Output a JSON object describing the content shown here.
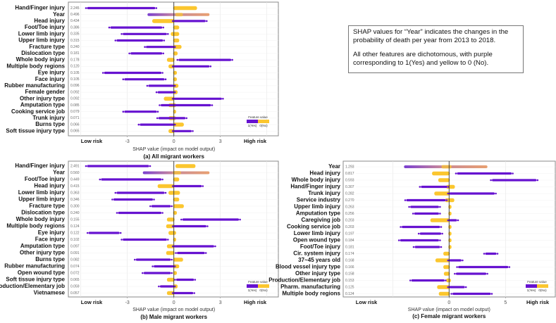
{
  "note": {
    "line1": "SHAP values for “Year” indicates the changes in the probability of death per year from 2013 to 2018.",
    "line2": "All other features are dichotomous, with purple corresponding to 1(Yes) and yellow to 0 (No)."
  },
  "colors": {
    "yes": "#6612d0",
    "no": "#fbc62e",
    "year": "#e39a6c",
    "grid": "#e6e6e6",
    "zero": "#333333"
  },
  "chart_data": [
    {
      "type": "scatter",
      "title": "(a) All migrant workers",
      "xlabel": "SHAP value (impact on model output)",
      "low_label": "Low risk",
      "high_label": "High risk",
      "x_ticks": [
        "-3",
        "0",
        "3"
      ],
      "grid": [
        -6,
        -3,
        3,
        6
      ],
      "xlim": [
        -6.8,
        6.75
      ],
      "legend": {
        "title": "Feature value",
        "yes": "1(Yes)",
        "no": "0(No)",
        "placement": "bottom-right"
      },
      "features": [
        {
          "name": "Hand/Finger injury",
          "mean_abs_shap": "2.245",
          "purple": [
            -5.6,
            -1.2
          ],
          "yellow": [
            0,
            1.45
          ]
        },
        {
          "name": "Year",
          "mean_abs_shap": "0.496",
          "mixed": [
            -1.7,
            2.3
          ]
        },
        {
          "name": "Head injury",
          "mean_abs_shap": "0.434",
          "purple": [
            0,
            2.05
          ],
          "yellow": [
            -1.35,
            0
          ]
        },
        {
          "name": "Foot/Toe injury",
          "mean_abs_shap": "0.386",
          "purple": [
            -4.1,
            -0.75
          ],
          "yellow": [
            0,
            0.3
          ]
        },
        {
          "name": "Lower limb injury",
          "mean_abs_shap": "0.335",
          "purple": [
            -3.3,
            -0.45
          ],
          "yellow": [
            -0.15,
            0.3
          ]
        },
        {
          "name": "Upper limb injury",
          "mean_abs_shap": "0.315",
          "purple": [
            -3.7,
            -0.7
          ],
          "yellow": [
            0,
            0.3
          ]
        },
        {
          "name": "Fracture type",
          "mean_abs_shap": "0.240",
          "purple": [
            -1.8,
            0
          ],
          "yellow": [
            0,
            0.45
          ]
        },
        {
          "name": "Dislocation type",
          "mean_abs_shap": "0.181",
          "purple": [
            -2.8,
            -0.75
          ],
          "yellow": [
            0,
            0.2
          ]
        },
        {
          "name": "Whole body injury",
          "mean_abs_shap": "0.178",
          "purple": [
            0.3,
            3.7
          ],
          "yellow": [
            -0.4,
            0
          ]
        },
        {
          "name": "Multiple body regions",
          "mean_abs_shap": "0.120",
          "purple": [
            0,
            2.3
          ],
          "yellow": [
            -0.3,
            0
          ]
        },
        {
          "name": "Eye injury",
          "mean_abs_shap": "0.105",
          "purple": [
            -4.5,
            -0.8
          ],
          "yellow": [
            0,
            0.15
          ]
        },
        {
          "name": "Face injury",
          "mean_abs_shap": "0.105",
          "purple": [
            -3.2,
            -0.6
          ],
          "yellow": [
            0,
            0.15
          ]
        },
        {
          "name": "Rubber manufacturing",
          "mean_abs_shap": "0.096",
          "purple": [
            -1.65,
            0
          ],
          "yellow": [
            0,
            0.25
          ]
        },
        {
          "name": "Female gender",
          "mean_abs_shap": "0.092",
          "purple": [
            -1.05,
            0
          ],
          "yellow": [
            0,
            0.2
          ]
        },
        {
          "name": "Other injury type",
          "mean_abs_shap": "0.092",
          "purple": [
            0,
            3.1
          ],
          "yellow": [
            -0.6,
            0
          ]
        },
        {
          "name": "Amputation type",
          "mean_abs_shap": "0.085",
          "purple": [
            -0.85,
            2.4
          ],
          "yellow": [
            -0.3,
            0.1
          ]
        },
        {
          "name": "Cooking service job",
          "mean_abs_shap": "0.079",
          "purple": [
            -3.2,
            -1.1
          ],
          "yellow": [
            0,
            0.1
          ]
        },
        {
          "name": "Trunk injury",
          "mean_abs_shap": "0.071",
          "purple": [
            -1.0,
            0.75
          ],
          "yellow": [
            -0.3,
            0.1
          ]
        },
        {
          "name": "Burns type",
          "mean_abs_shap": "0.066",
          "purple": [
            -2.2,
            0
          ],
          "yellow": [
            0,
            0.6
          ]
        },
        {
          "name": "Soft tissue injury type",
          "mean_abs_shap": "0.065",
          "purple": [
            0,
            1.15
          ],
          "yellow": [
            -0.3,
            0
          ]
        }
      ]
    },
    {
      "type": "scatter",
      "title": "(b) Male migrant workers",
      "xlabel": "SHAP value (impact on model output)",
      "low_label": "Low risk",
      "high_label": "High risk",
      "x_ticks": [
        "-3",
        "0",
        "3"
      ],
      "grid": [
        -6,
        -3,
        3,
        6
      ],
      "xlim": [
        -6.8,
        6.75
      ],
      "legend": {
        "title": "Feature value",
        "yes": "1(Yes)",
        "no": "0(No)",
        "placement": "bottom-right"
      },
      "features": [
        {
          "name": "Hand/Finger injury",
          "mean_abs_shap": "2.491",
          "purple": [
            -5.6,
            -1.6
          ],
          "yellow": [
            0.15,
            1.35
          ]
        },
        {
          "name": "Year",
          "mean_abs_shap": "0.560",
          "mixed": [
            -2.0,
            2.3
          ]
        },
        {
          "name": "Foot/Toe injury",
          "mean_abs_shap": "0.449",
          "purple": [
            -4.7,
            -0.8
          ],
          "yellow": [
            0,
            0.3
          ]
        },
        {
          "name": "Head injury",
          "mean_abs_shap": "0.415",
          "purple": [
            0,
            1.8
          ],
          "yellow": [
            -1.0,
            0
          ]
        },
        {
          "name": "Lower limb injury",
          "mean_abs_shap": "0.363",
          "purple": [
            -3.7,
            -0.6
          ],
          "yellow": [
            -0.3,
            0.35
          ]
        },
        {
          "name": "Upper limb injury",
          "mean_abs_shap": "0.346",
          "purple": [
            -3.9,
            -1.35
          ],
          "yellow": [
            0,
            0.3
          ]
        },
        {
          "name": "Fracture type",
          "mean_abs_shap": "0.300",
          "purple": [
            -1.45,
            -0.2
          ],
          "yellow": [
            0,
            0.6
          ]
        },
        {
          "name": "Dislocation type",
          "mean_abs_shap": "0.240",
          "purple": [
            -3.6,
            -0.8
          ],
          "yellow": [
            0,
            0.15
          ]
        },
        {
          "name": "Whole body injury",
          "mean_abs_shap": "0.155",
          "purple": [
            0.55,
            4.2
          ],
          "yellow": [
            -0.4,
            0
          ]
        },
        {
          "name": "Multiple body regions",
          "mean_abs_shap": "0.124",
          "purple": [
            0,
            2.1
          ],
          "yellow": [
            -0.45,
            0
          ]
        },
        {
          "name": "Eye injury",
          "mean_abs_shap": "0.122",
          "purple": [
            -5.5,
            -3.5
          ],
          "yellow": [
            -0.3,
            0.1
          ]
        },
        {
          "name": "Face injury",
          "mean_abs_shap": "0.102",
          "purple": [
            -3.3,
            -0.45
          ],
          "yellow": [
            0,
            0.1
          ]
        },
        {
          "name": "Amputation type",
          "mean_abs_shap": "0.097",
          "purple": [
            0,
            2.6
          ],
          "yellow": [
            -0.4,
            0
          ]
        },
        {
          "name": "Other injury type",
          "mean_abs_shap": "0.091",
          "purple": [
            0.2,
            2.0
          ],
          "yellow": [
            -0.45,
            0
          ]
        },
        {
          "name": "Burns type",
          "mean_abs_shap": "0.082",
          "purple": [
            -2.45,
            -0.2
          ],
          "yellow": [
            0,
            0.55
          ]
        },
        {
          "name": "Rubber manufacturing",
          "mean_abs_shap": "0.074",
          "purple": [
            -1.3,
            0
          ],
          "yellow": [
            0,
            0.3
          ]
        },
        {
          "name": "Open wound type",
          "mean_abs_shap": "0.072",
          "purple": [
            -1.95,
            -0.2
          ],
          "yellow": [
            0,
            0.15
          ]
        },
        {
          "name": "Soft tissue injury type",
          "mean_abs_shap": "0.065",
          "purple": [
            0.15,
            1.3
          ],
          "yellow": [
            -0.4,
            0
          ]
        },
        {
          "name": "Production/Elementary job",
          "mean_abs_shap": "0.059",
          "purple": [
            -0.9,
            0
          ],
          "yellow": [
            0,
            0.2
          ]
        },
        {
          "name": "Vietnamese",
          "mean_abs_shap": "0.057",
          "purple": [
            0,
            1.25
          ],
          "yellow": [
            -0.4,
            0
          ]
        }
      ]
    },
    {
      "type": "scatter",
      "title": "(c) Female migrant workers",
      "xlabel": "SHAP value (impact on model output)",
      "low_label": "Low risk",
      "high_label": "High risk",
      "x_ticks": [
        "0",
        "5"
      ],
      "grid": [
        -5,
        5
      ],
      "xlim": [
        -9.4,
        9.4
      ],
      "legend": {
        "title": "Feature value",
        "yes": "1(Yes)",
        "no": "0(No)",
        "placement": "bottom-right"
      },
      "features": [
        {
          "name": "Year",
          "mean_abs_shap": "1.293",
          "mixed": [
            -4.0,
            3.4
          ]
        },
        {
          "name": "Head injury",
          "mean_abs_shap": "0.817",
          "purple": [
            0.7,
            5.55
          ],
          "yellow": [
            -1.45,
            0
          ]
        },
        {
          "name": "Whole body injury",
          "mean_abs_shap": "0.593",
          "purple": [
            3.8,
            7.75
          ],
          "yellow": [
            -0.9,
            0
          ]
        },
        {
          "name": "Hand/Finger injury",
          "mean_abs_shap": "0.307",
          "purple": [
            -2.5,
            -0.15
          ],
          "yellow": [
            -0.2,
            0.45
          ]
        },
        {
          "name": "Trunk injury",
          "mean_abs_shap": "0.282",
          "purple": [
            0,
            4.05
          ],
          "yellow": [
            -1.25,
            0
          ]
        },
        {
          "name": "Service industry",
          "mean_abs_shap": "0.270",
          "purple": [
            -3.8,
            -0.3
          ],
          "yellow": [
            -0.3,
            0.4
          ]
        },
        {
          "name": "Upper limb injury",
          "mean_abs_shap": "0.263",
          "purple": [
            -3.45,
            -0.9
          ],
          "yellow": [
            0,
            0.15
          ]
        },
        {
          "name": "Amputation type",
          "mean_abs_shap": "0.256",
          "purple": [
            -3.1,
            -0.9
          ],
          "yellow": [
            0,
            0.15
          ]
        },
        {
          "name": "Caregiving job",
          "mean_abs_shap": "0.203",
          "purple": [
            0,
            0.7
          ],
          "yellow": [
            -1.6,
            0
          ]
        },
        {
          "name": "Cooking service job",
          "mean_abs_shap": "0.203",
          "purple": [
            -4.2,
            -0.8
          ],
          "yellow": [
            0,
            0.15
          ]
        },
        {
          "name": "Lower limb injury",
          "mean_abs_shap": "0.197",
          "purple": [
            -2.6,
            -0.7
          ],
          "yellow": [
            0,
            0.15
          ]
        },
        {
          "name": "Open wound type",
          "mean_abs_shap": "0.184",
          "purple": [
            -4.35,
            -0.9
          ],
          "yellow": [
            0,
            0.15
          ]
        },
        {
          "name": "Foot/Toe injury",
          "mean_abs_shap": "0.181",
          "purple": [
            -3.05,
            -0.8
          ],
          "yellow": [
            0,
            0.15
          ]
        },
        {
          "name": "Cir. system injury",
          "mean_abs_shap": "0.174",
          "purple": [
            3.2,
            4.2
          ],
          "yellow": [
            -0.45,
            0
          ]
        },
        {
          "name": "37~45 years old",
          "mean_abs_shap": "0.168",
          "purple": [
            0,
            1.1
          ],
          "yellow": [
            -1.15,
            0
          ]
        },
        {
          "name": "Blood vessel injury type",
          "mean_abs_shap": "0.166",
          "purple": [
            0.8,
            5.25
          ],
          "yellow": [
            -0.45,
            0
          ]
        },
        {
          "name": "Other injury type",
          "mean_abs_shap": "0.158",
          "purple": [
            0.6,
            3.3
          ],
          "yellow": [
            -0.4,
            0
          ]
        },
        {
          "name": "Production/Elementary job",
          "mean_abs_shap": "0.153",
          "purple": [
            -3.35,
            -0.4
          ],
          "yellow": [
            -0.2,
            0.1
          ]
        },
        {
          "name": "Pharm. manufacturing",
          "mean_abs_shap": "0.125",
          "purple": [
            0,
            1.4
          ],
          "yellow": [
            -1.0,
            0
          ]
        },
        {
          "name": "Multiple body regions",
          "mean_abs_shap": "0.124",
          "purple": [
            0.3,
            3.7
          ],
          "yellow": [
            -0.85,
            0
          ]
        }
      ]
    }
  ]
}
